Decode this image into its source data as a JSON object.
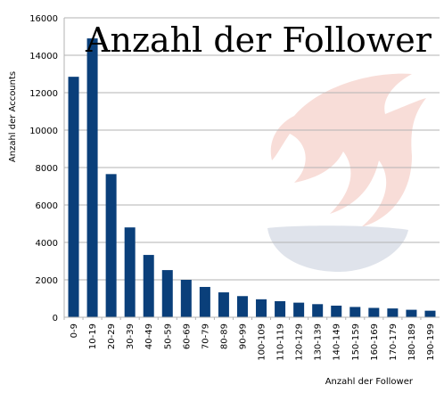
{
  "chart_data": {
    "type": "bar",
    "title": "Anzahl der Follower",
    "xlabel": "Anzahl der Follower",
    "ylabel": "Anzahl der Accounts",
    "ylim": [
      0,
      16000
    ],
    "yticks": [
      0,
      2000,
      4000,
      6000,
      8000,
      10000,
      12000,
      14000,
      16000
    ],
    "grid": true,
    "legend": "none",
    "bar_color": "#0a3f7a",
    "categories": [
      "0-9",
      "10-19",
      "20-29",
      "30-39",
      "40-49",
      "50-59",
      "60-69",
      "70-79",
      "80-89",
      "90-99",
      "100-109",
      "110-119",
      "120-129",
      "130-139",
      "140-149",
      "150-159",
      "160-169",
      "170-179",
      "180-189",
      "190-199"
    ],
    "values": [
      12850,
      14900,
      7650,
      4800,
      3330,
      2520,
      2000,
      1620,
      1330,
      1130,
      960,
      860,
      780,
      700,
      620,
      550,
      500,
      470,
      400,
      350
    ]
  },
  "watermark": {
    "name": "flame-logo",
    "colors": [
      "#f7d9d3",
      "#dde1ea"
    ]
  }
}
